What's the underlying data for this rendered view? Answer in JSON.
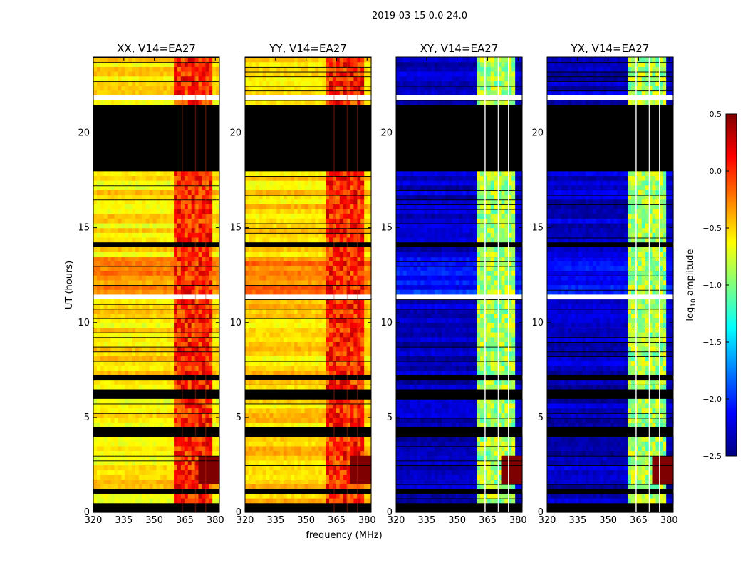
{
  "chart_data": {
    "type": "heatmap",
    "suptitle": "2019-03-15 0.0-24.0",
    "panels": [
      {
        "title": "XX, V14=EA27",
        "pol": "XX",
        "base_log_amp": -0.55,
        "band_log_amp": -0.1
      },
      {
        "title": "YY, V14=EA27",
        "pol": "YY",
        "base_log_amp": -0.5,
        "band_log_amp": -0.1
      },
      {
        "title": "XY, V14=EA27",
        "pol": "XY",
        "base_log_amp": -2.3,
        "band_log_amp": -1.0
      },
      {
        "title": "YX, V14=EA27",
        "pol": "YX",
        "base_log_amp": -2.3,
        "band_log_amp": -1.0
      }
    ],
    "xlabel": "frequency (MHz)",
    "ylabel": "UT (hours)",
    "xlim": [
      320,
      382
    ],
    "ylim": [
      0,
      24
    ],
    "xticks": [
      320,
      335,
      350,
      365,
      380
    ],
    "yticks": [
      0,
      5,
      10,
      15,
      20
    ],
    "xtick_labels": [
      "320",
      "335",
      "350",
      "365",
      "380"
    ],
    "ytick_labels": [
      "0",
      "5",
      "10",
      "15",
      "20"
    ],
    "bright_band_mhz": [
      360,
      378
    ],
    "flagged_hours_black": [
      [
        0.0,
        0.6
      ],
      [
        1.05,
        1.3
      ],
      [
        4.1,
        4.4
      ],
      [
        5.9,
        6.5
      ],
      [
        7.1,
        7.2
      ],
      [
        14.05,
        14.2
      ],
      [
        16.9,
        17.05
      ],
      [
        18.0,
        21.6
      ]
    ],
    "flagged_hours_white": [
      [
        11.3,
        11.5
      ],
      [
        21.7,
        22.0
      ]
    ],
    "colorbar": {
      "label": "log10 amplitude",
      "label_base": "log",
      "label_sub": "10",
      "label_rest": "amplitude",
      "min": -2.5,
      "max": 0.5,
      "ticks": [
        0.5,
        0.0,
        -0.5,
        -1.0,
        -1.5,
        -2.0,
        -2.5
      ],
      "tick_labels": [
        "0.5",
        "0.0",
        "−0.5",
        "−1.0",
        "−1.5",
        "−2.0",
        "−2.5"
      ],
      "colormap": [
        "#00007f",
        "#0000ff",
        "#007fff",
        "#00ffff",
        "#7fff7f",
        "#ffff00",
        "#ff7f00",
        "#ff0000",
        "#7f0000"
      ]
    }
  }
}
